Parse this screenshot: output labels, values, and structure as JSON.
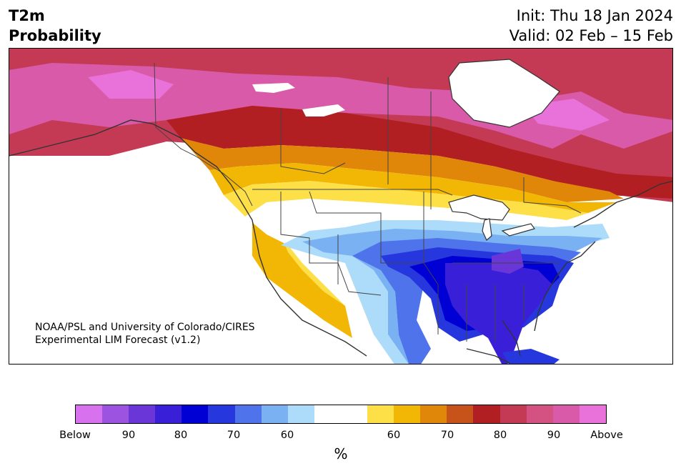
{
  "title": {
    "variable": "T2m",
    "product": "Probability",
    "init": "Init: Thu 18 Jan 2024",
    "valid": "Valid: 02 Feb – 15 Feb"
  },
  "credit": {
    "line1": "NOAA/PSL and University of Colorado/CIRES",
    "line2": "Experimental LIM Forecast (v1.2)"
  },
  "colorbar": {
    "unit": "%",
    "colors_below": [
      "#d771ee",
      "#9b53e0",
      "#6a36d8",
      "#3a1fd8",
      "#0000d4",
      "#2638dd",
      "#4e73ea",
      "#79b1f3",
      "#addcfa"
    ],
    "color_neutral": "#ffffff",
    "colors_above": [
      "#fde048",
      "#f2b705",
      "#e0870a",
      "#c7531b",
      "#b21f22",
      "#c43a55",
      "#d45282",
      "#d85aa8",
      "#e871da"
    ],
    "ticks": {
      "below": "Below",
      "b90": "90",
      "b80": "80",
      "b70": "70",
      "b60": "60",
      "a60": "60",
      "a70": "70",
      "a80": "80",
      "a90": "90",
      "above": "Above"
    }
  },
  "map": {
    "region": "North America",
    "field": "Probability of below / above normal 2 m temperature"
  }
}
